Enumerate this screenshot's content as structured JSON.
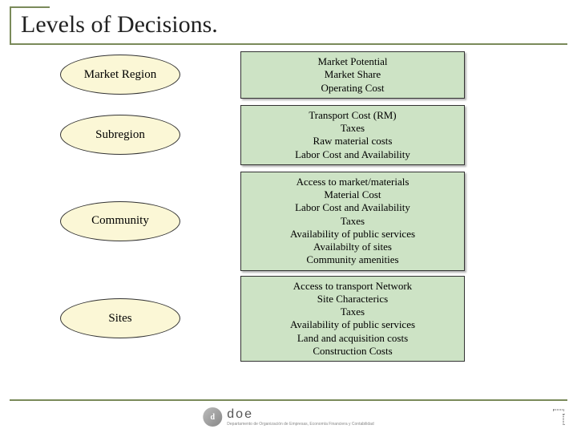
{
  "title": "Levels of Decisions.",
  "oval_fill": "#fbf7d6",
  "box_fill": "#cde3c5",
  "line_color": "#7a8a5a",
  "levels": [
    {
      "name": "Market Region",
      "factors": [
        "Market Potential",
        "Market Share",
        "Operating Cost"
      ]
    },
    {
      "name": "Subregion",
      "factors": [
        "Transport Cost (RM)",
        "Taxes",
        "Raw material costs",
        "Labor Cost and Availability"
      ]
    },
    {
      "name": "Community",
      "factors": [
        "Access to market/materials",
        "Material Cost",
        "Labor Cost and Availability",
        "Taxes",
        "Availability of public services",
        "Availabilty of sites",
        "Community amenities"
      ]
    },
    {
      "name": "Sites",
      "factors": [
        "Access to transport Network",
        "Site Characterics",
        "Taxes",
        "Availability of public services",
        "Land and acquisition costs",
        "Construction Costs"
      ]
    }
  ],
  "footer": {
    "logo_letter": "d",
    "logo_main": "doe",
    "logo_sub": "Departamento de Organización de Empresas, Economía Financiera y Contabilidad"
  }
}
